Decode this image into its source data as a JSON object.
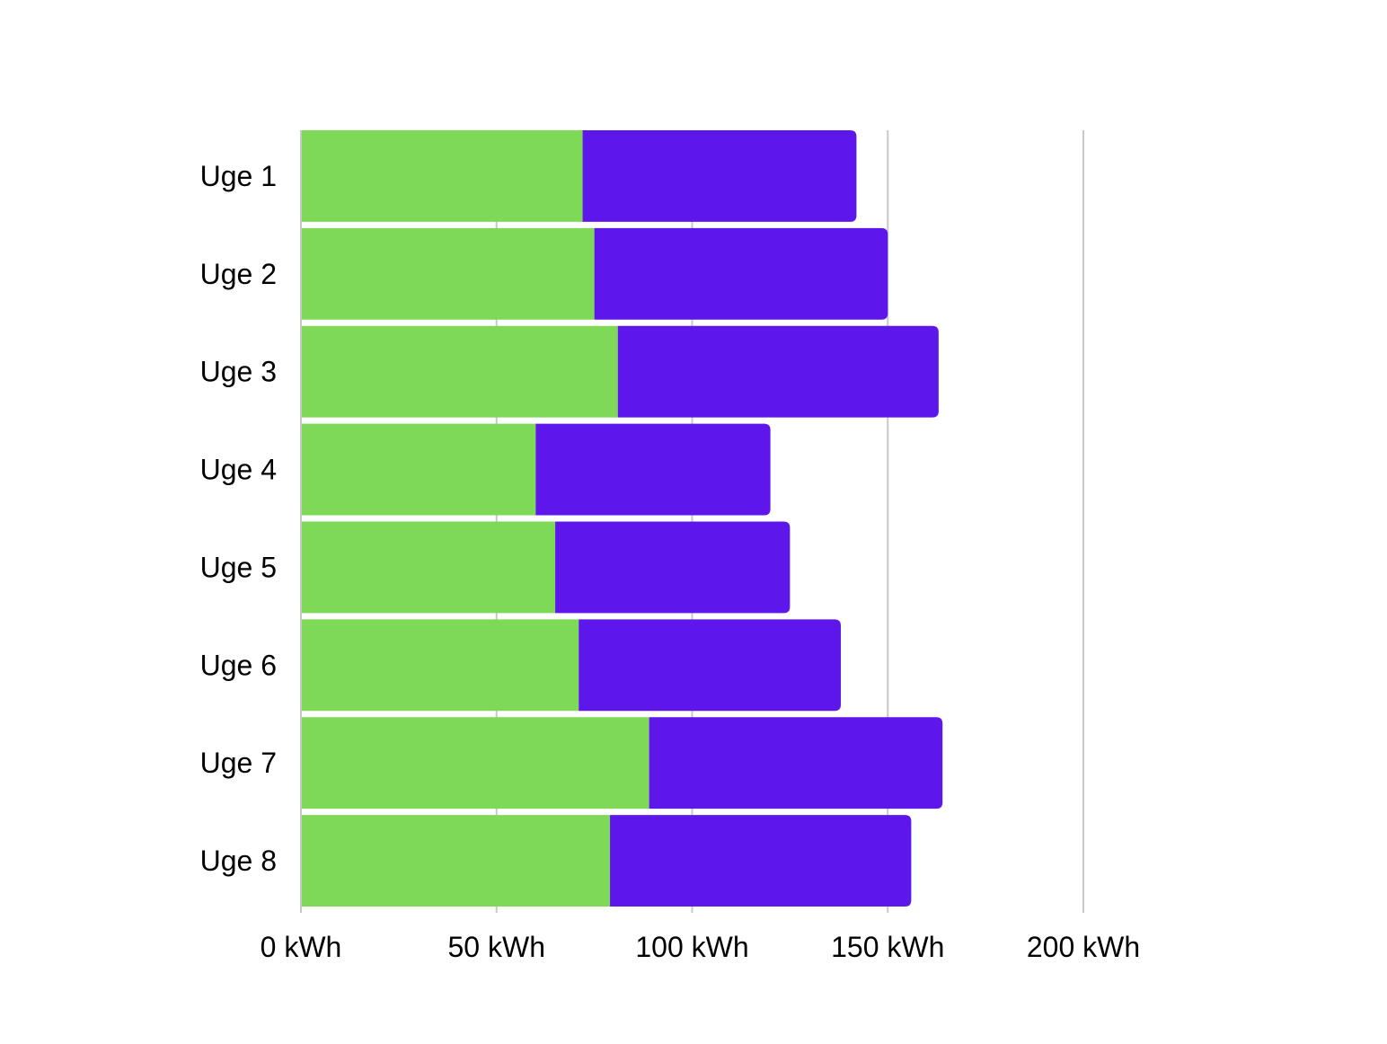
{
  "chart_data": {
    "type": "bar",
    "orientation": "horizontal",
    "stacked": true,
    "categories": [
      "Uge 1",
      "Uge 2",
      "Uge 3",
      "Uge 4",
      "Uge 5",
      "Uge 6",
      "Uge 7",
      "Uge 8"
    ],
    "series": [
      {
        "color": "#7ed957",
        "values": [
          72,
          75,
          81,
          60,
          65,
          71,
          89,
          79
        ]
      },
      {
        "color": "#5e17eb",
        "values": [
          70,
          75,
          82,
          60,
          60,
          67,
          75,
          77
        ]
      }
    ],
    "xlim": [
      0,
      200
    ],
    "x_ticks": [
      0,
      50,
      100,
      150,
      200
    ],
    "x_tick_labels": [
      "0 kWh",
      "50 kWh",
      "100 kWh",
      "150 kWh",
      "200 kWh"
    ],
    "grid": true,
    "legend": "none",
    "title": "",
    "xlabel": "",
    "ylabel": ""
  }
}
